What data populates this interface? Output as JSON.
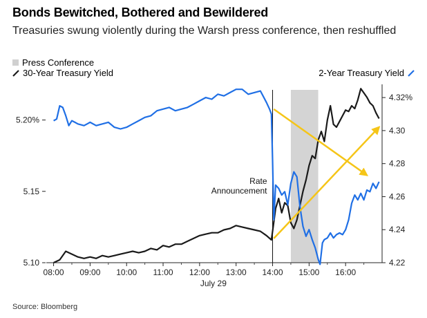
{
  "chart_data": {
    "type": "line",
    "title": "Bonds Bewitched, Bothered and Bewildered",
    "subtitle": "Treasuries swung violently during the Warsh press conference, then reshuffled",
    "source": "Source: Bloomberg",
    "xlabel": "July 29",
    "x_ticks": [
      "08:00",
      "09:00",
      "10:00",
      "11:00",
      "12:00",
      "13:00",
      "14:00",
      "15:00",
      "16:00"
    ],
    "y_left": {
      "ticks": [
        "5.10",
        "5.15",
        "5.20%"
      ],
      "range": [
        5.1,
        5.225
      ]
    },
    "y_right": {
      "ticks": [
        "4.22",
        "4.24",
        "4.26",
        "4.28",
        "4.30",
        "4.32%"
      ],
      "range": [
        4.22,
        4.328
      ]
    },
    "legend": {
      "press_conference": "Press Conference",
      "thirty_year": "30-Year Treasury Yield",
      "two_year": "2-Year Treasury Yield"
    },
    "annotation": {
      "line1": "Rate",
      "line2": "Announcement"
    },
    "press_conference_span": [
      "14:30",
      "15:15"
    ],
    "series": [
      {
        "name": "30-Year Treasury Yield",
        "axis": "left",
        "color": "#1a1a1a",
        "points": [
          [
            "08:00",
            5.1
          ],
          [
            "08:10",
            5.102
          ],
          [
            "08:20",
            5.108
          ],
          [
            "08:30",
            5.106
          ],
          [
            "08:40",
            5.104
          ],
          [
            "08:50",
            5.103
          ],
          [
            "09:00",
            5.104
          ],
          [
            "09:10",
            5.103
          ],
          [
            "09:20",
            5.105
          ],
          [
            "09:30",
            5.104
          ],
          [
            "09:40",
            5.105
          ],
          [
            "09:50",
            5.106
          ],
          [
            "10:00",
            5.107
          ],
          [
            "10:10",
            5.108
          ],
          [
            "10:20",
            5.107
          ],
          [
            "10:30",
            5.108
          ],
          [
            "10:40",
            5.11
          ],
          [
            "10:50",
            5.109
          ],
          [
            "11:00",
            5.112
          ],
          [
            "11:10",
            5.111
          ],
          [
            "11:20",
            5.113
          ],
          [
            "11:30",
            5.113
          ],
          [
            "11:40",
            5.115
          ],
          [
            "11:50",
            5.117
          ],
          [
            "12:00",
            5.119
          ],
          [
            "12:10",
            5.12
          ],
          [
            "12:20",
            5.121
          ],
          [
            "12:30",
            5.121
          ],
          [
            "12:40",
            5.123
          ],
          [
            "12:50",
            5.124
          ],
          [
            "13:00",
            5.126
          ],
          [
            "13:10",
            5.125
          ],
          [
            "13:20",
            5.124
          ],
          [
            "13:30",
            5.123
          ],
          [
            "13:40",
            5.122
          ],
          [
            "13:50",
            5.119
          ],
          [
            "13:58",
            5.116
          ],
          [
            "14:00",
            5.122
          ],
          [
            "14:05",
            5.138
          ],
          [
            "14:10",
            5.145
          ],
          [
            "14:15",
            5.135
          ],
          [
            "14:20",
            5.142
          ],
          [
            "14:25",
            5.14
          ],
          [
            "14:30",
            5.128
          ],
          [
            "14:35",
            5.124
          ],
          [
            "14:40",
            5.13
          ],
          [
            "14:45",
            5.14
          ],
          [
            "14:50",
            5.15
          ],
          [
            "14:55",
            5.158
          ],
          [
            "15:00",
            5.168
          ],
          [
            "15:05",
            5.175
          ],
          [
            "15:10",
            5.173
          ],
          [
            "15:15",
            5.186
          ],
          [
            "15:20",
            5.192
          ],
          [
            "15:25",
            5.185
          ],
          [
            "15:30",
            5.2
          ],
          [
            "15:35",
            5.21
          ],
          [
            "15:40",
            5.197
          ],
          [
            "15:45",
            5.195
          ],
          [
            "15:50",
            5.199
          ],
          [
            "15:55",
            5.203
          ],
          [
            "16:00",
            5.207
          ],
          [
            "16:05",
            5.206
          ],
          [
            "16:10",
            5.21
          ],
          [
            "16:15",
            5.208
          ],
          [
            "16:20",
            5.214
          ],
          [
            "16:25",
            5.222
          ],
          [
            "16:30",
            5.219
          ],
          [
            "16:35",
            5.216
          ],
          [
            "16:40",
            5.212
          ],
          [
            "16:45",
            5.21
          ],
          [
            "16:50",
            5.205
          ],
          [
            "16:55",
            5.201
          ]
        ]
      },
      {
        "name": "2-Year Treasury Yield",
        "axis": "right",
        "color": "#1f6fe5",
        "points": [
          [
            "08:00",
            4.306
          ],
          [
            "08:05",
            4.307
          ],
          [
            "08:10",
            4.315
          ],
          [
            "08:15",
            4.314
          ],
          [
            "08:20",
            4.309
          ],
          [
            "08:25",
            4.303
          ],
          [
            "08:30",
            4.306
          ],
          [
            "08:35",
            4.305
          ],
          [
            "08:40",
            4.304
          ],
          [
            "08:50",
            4.303
          ],
          [
            "09:00",
            4.305
          ],
          [
            "09:10",
            4.303
          ],
          [
            "09:20",
            4.304
          ],
          [
            "09:30",
            4.305
          ],
          [
            "09:40",
            4.302
          ],
          [
            "09:50",
            4.301
          ],
          [
            "10:00",
            4.302
          ],
          [
            "10:10",
            4.304
          ],
          [
            "10:20",
            4.306
          ],
          [
            "10:30",
            4.308
          ],
          [
            "10:40",
            4.309
          ],
          [
            "10:50",
            4.312
          ],
          [
            "11:00",
            4.313
          ],
          [
            "11:10",
            4.314
          ],
          [
            "11:20",
            4.312
          ],
          [
            "11:30",
            4.313
          ],
          [
            "11:40",
            4.314
          ],
          [
            "11:50",
            4.316
          ],
          [
            "12:00",
            4.318
          ],
          [
            "12:10",
            4.32
          ],
          [
            "12:20",
            4.319
          ],
          [
            "12:30",
            4.322
          ],
          [
            "12:40",
            4.321
          ],
          [
            "12:50",
            4.323
          ],
          [
            "13:00",
            4.325
          ],
          [
            "13:10",
            4.325
          ],
          [
            "13:20",
            4.322
          ],
          [
            "13:30",
            4.323
          ],
          [
            "13:40",
            4.324
          ],
          [
            "13:50",
            4.317
          ],
          [
            "13:55",
            4.313
          ],
          [
            "13:58",
            4.31
          ],
          [
            "14:00",
            4.282
          ],
          [
            "14:02",
            4.246
          ],
          [
            "14:05",
            4.267
          ],
          [
            "14:10",
            4.265
          ],
          [
            "14:15",
            4.261
          ],
          [
            "14:20",
            4.263
          ],
          [
            "14:25",
            4.255
          ],
          [
            "14:30",
            4.268
          ],
          [
            "14:35",
            4.275
          ],
          [
            "14:40",
            4.272
          ],
          [
            "14:45",
            4.254
          ],
          [
            "14:50",
            4.242
          ],
          [
            "14:55",
            4.236
          ],
          [
            "15:00",
            4.24
          ],
          [
            "15:05",
            4.234
          ],
          [
            "15:10",
            4.229
          ],
          [
            "15:15",
            4.222
          ],
          [
            "15:18",
            4.219
          ],
          [
            "15:22",
            4.232
          ],
          [
            "15:25",
            4.234
          ],
          [
            "15:30",
            4.235
          ],
          [
            "15:35",
            4.238
          ],
          [
            "15:40",
            4.235
          ],
          [
            "15:45",
            4.237
          ],
          [
            "15:50",
            4.238
          ],
          [
            "15:55",
            4.237
          ],
          [
            "16:00",
            4.24
          ],
          [
            "16:05",
            4.246
          ],
          [
            "16:10",
            4.256
          ],
          [
            "16:15",
            4.261
          ],
          [
            "16:20",
            4.258
          ],
          [
            "16:25",
            4.262
          ],
          [
            "16:30",
            4.258
          ],
          [
            "16:35",
            4.264
          ],
          [
            "16:40",
            4.263
          ],
          [
            "16:45",
            4.268
          ],
          [
            "16:50",
            4.265
          ],
          [
            "16:55",
            4.269
          ]
        ]
      }
    ],
    "arrow_color": "#f5c518"
  }
}
